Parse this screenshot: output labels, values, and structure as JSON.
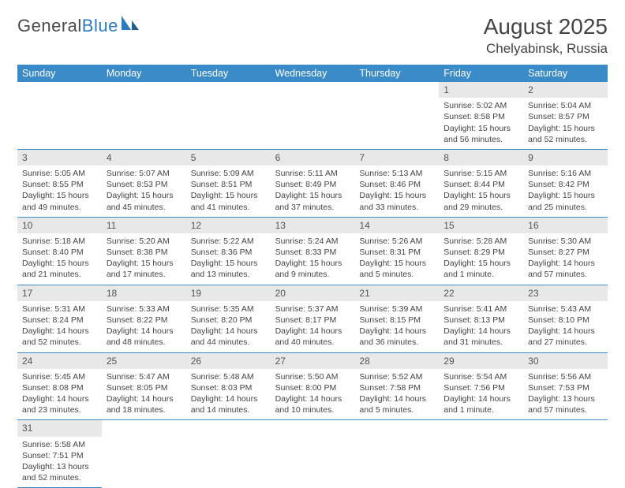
{
  "logo": {
    "text1": "General",
    "text2": "Blue"
  },
  "header": {
    "month_title": "August 2025",
    "location": "Chelyabinsk, Russia"
  },
  "colors": {
    "header_bg": "#3b8bc9",
    "header_fg": "#ffffff",
    "row_divider": "#3b8bc9",
    "daynum_bg": "#e8e8e8",
    "text": "#444444"
  },
  "weekdays": [
    "Sunday",
    "Monday",
    "Tuesday",
    "Wednesday",
    "Thursday",
    "Friday",
    "Saturday"
  ],
  "weeks": [
    [
      {
        "n": "",
        "empty": true
      },
      {
        "n": "",
        "empty": true
      },
      {
        "n": "",
        "empty": true
      },
      {
        "n": "",
        "empty": true
      },
      {
        "n": "",
        "empty": true
      },
      {
        "n": "1",
        "sr": "Sunrise: 5:02 AM",
        "ss": "Sunset: 8:58 PM",
        "dl1": "Daylight: 15 hours",
        "dl2": "and 56 minutes."
      },
      {
        "n": "2",
        "sr": "Sunrise: 5:04 AM",
        "ss": "Sunset: 8:57 PM",
        "dl1": "Daylight: 15 hours",
        "dl2": "and 52 minutes."
      }
    ],
    [
      {
        "n": "3",
        "sr": "Sunrise: 5:05 AM",
        "ss": "Sunset: 8:55 PM",
        "dl1": "Daylight: 15 hours",
        "dl2": "and 49 minutes."
      },
      {
        "n": "4",
        "sr": "Sunrise: 5:07 AM",
        "ss": "Sunset: 8:53 PM",
        "dl1": "Daylight: 15 hours",
        "dl2": "and 45 minutes."
      },
      {
        "n": "5",
        "sr": "Sunrise: 5:09 AM",
        "ss": "Sunset: 8:51 PM",
        "dl1": "Daylight: 15 hours",
        "dl2": "and 41 minutes."
      },
      {
        "n": "6",
        "sr": "Sunrise: 5:11 AM",
        "ss": "Sunset: 8:49 PM",
        "dl1": "Daylight: 15 hours",
        "dl2": "and 37 minutes."
      },
      {
        "n": "7",
        "sr": "Sunrise: 5:13 AM",
        "ss": "Sunset: 8:46 PM",
        "dl1": "Daylight: 15 hours",
        "dl2": "and 33 minutes."
      },
      {
        "n": "8",
        "sr": "Sunrise: 5:15 AM",
        "ss": "Sunset: 8:44 PM",
        "dl1": "Daylight: 15 hours",
        "dl2": "and 29 minutes."
      },
      {
        "n": "9",
        "sr": "Sunrise: 5:16 AM",
        "ss": "Sunset: 8:42 PM",
        "dl1": "Daylight: 15 hours",
        "dl2": "and 25 minutes."
      }
    ],
    [
      {
        "n": "10",
        "sr": "Sunrise: 5:18 AM",
        "ss": "Sunset: 8:40 PM",
        "dl1": "Daylight: 15 hours",
        "dl2": "and 21 minutes."
      },
      {
        "n": "11",
        "sr": "Sunrise: 5:20 AM",
        "ss": "Sunset: 8:38 PM",
        "dl1": "Daylight: 15 hours",
        "dl2": "and 17 minutes."
      },
      {
        "n": "12",
        "sr": "Sunrise: 5:22 AM",
        "ss": "Sunset: 8:36 PM",
        "dl1": "Daylight: 15 hours",
        "dl2": "and 13 minutes."
      },
      {
        "n": "13",
        "sr": "Sunrise: 5:24 AM",
        "ss": "Sunset: 8:33 PM",
        "dl1": "Daylight: 15 hours",
        "dl2": "and 9 minutes."
      },
      {
        "n": "14",
        "sr": "Sunrise: 5:26 AM",
        "ss": "Sunset: 8:31 PM",
        "dl1": "Daylight: 15 hours",
        "dl2": "and 5 minutes."
      },
      {
        "n": "15",
        "sr": "Sunrise: 5:28 AM",
        "ss": "Sunset: 8:29 PM",
        "dl1": "Daylight: 15 hours",
        "dl2": "and 1 minute."
      },
      {
        "n": "16",
        "sr": "Sunrise: 5:30 AM",
        "ss": "Sunset: 8:27 PM",
        "dl1": "Daylight: 14 hours",
        "dl2": "and 57 minutes."
      }
    ],
    [
      {
        "n": "17",
        "sr": "Sunrise: 5:31 AM",
        "ss": "Sunset: 8:24 PM",
        "dl1": "Daylight: 14 hours",
        "dl2": "and 52 minutes."
      },
      {
        "n": "18",
        "sr": "Sunrise: 5:33 AM",
        "ss": "Sunset: 8:22 PM",
        "dl1": "Daylight: 14 hours",
        "dl2": "and 48 minutes."
      },
      {
        "n": "19",
        "sr": "Sunrise: 5:35 AM",
        "ss": "Sunset: 8:20 PM",
        "dl1": "Daylight: 14 hours",
        "dl2": "and 44 minutes."
      },
      {
        "n": "20",
        "sr": "Sunrise: 5:37 AM",
        "ss": "Sunset: 8:17 PM",
        "dl1": "Daylight: 14 hours",
        "dl2": "and 40 minutes."
      },
      {
        "n": "21",
        "sr": "Sunrise: 5:39 AM",
        "ss": "Sunset: 8:15 PM",
        "dl1": "Daylight: 14 hours",
        "dl2": "and 36 minutes."
      },
      {
        "n": "22",
        "sr": "Sunrise: 5:41 AM",
        "ss": "Sunset: 8:13 PM",
        "dl1": "Daylight: 14 hours",
        "dl2": "and 31 minutes."
      },
      {
        "n": "23",
        "sr": "Sunrise: 5:43 AM",
        "ss": "Sunset: 8:10 PM",
        "dl1": "Daylight: 14 hours",
        "dl2": "and 27 minutes."
      }
    ],
    [
      {
        "n": "24",
        "sr": "Sunrise: 5:45 AM",
        "ss": "Sunset: 8:08 PM",
        "dl1": "Daylight: 14 hours",
        "dl2": "and 23 minutes."
      },
      {
        "n": "25",
        "sr": "Sunrise: 5:47 AM",
        "ss": "Sunset: 8:05 PM",
        "dl1": "Daylight: 14 hours",
        "dl2": "and 18 minutes."
      },
      {
        "n": "26",
        "sr": "Sunrise: 5:48 AM",
        "ss": "Sunset: 8:03 PM",
        "dl1": "Daylight: 14 hours",
        "dl2": "and 14 minutes."
      },
      {
        "n": "27",
        "sr": "Sunrise: 5:50 AM",
        "ss": "Sunset: 8:00 PM",
        "dl1": "Daylight: 14 hours",
        "dl2": "and 10 minutes."
      },
      {
        "n": "28",
        "sr": "Sunrise: 5:52 AM",
        "ss": "Sunset: 7:58 PM",
        "dl1": "Daylight: 14 hours",
        "dl2": "and 5 minutes."
      },
      {
        "n": "29",
        "sr": "Sunrise: 5:54 AM",
        "ss": "Sunset: 7:56 PM",
        "dl1": "Daylight: 14 hours",
        "dl2": "and 1 minute."
      },
      {
        "n": "30",
        "sr": "Sunrise: 5:56 AM",
        "ss": "Sunset: 7:53 PM",
        "dl1": "Daylight: 13 hours",
        "dl2": "and 57 minutes."
      }
    ],
    [
      {
        "n": "31",
        "sr": "Sunrise: 5:58 AM",
        "ss": "Sunset: 7:51 PM",
        "dl1": "Daylight: 13 hours",
        "dl2": "and 52 minutes."
      },
      {
        "n": "",
        "empty": true,
        "trailing": true
      },
      {
        "n": "",
        "empty": true,
        "trailing": true
      },
      {
        "n": "",
        "empty": true,
        "trailing": true
      },
      {
        "n": "",
        "empty": true,
        "trailing": true
      },
      {
        "n": "",
        "empty": true,
        "trailing": true
      },
      {
        "n": "",
        "empty": true,
        "trailing": true
      }
    ]
  ]
}
